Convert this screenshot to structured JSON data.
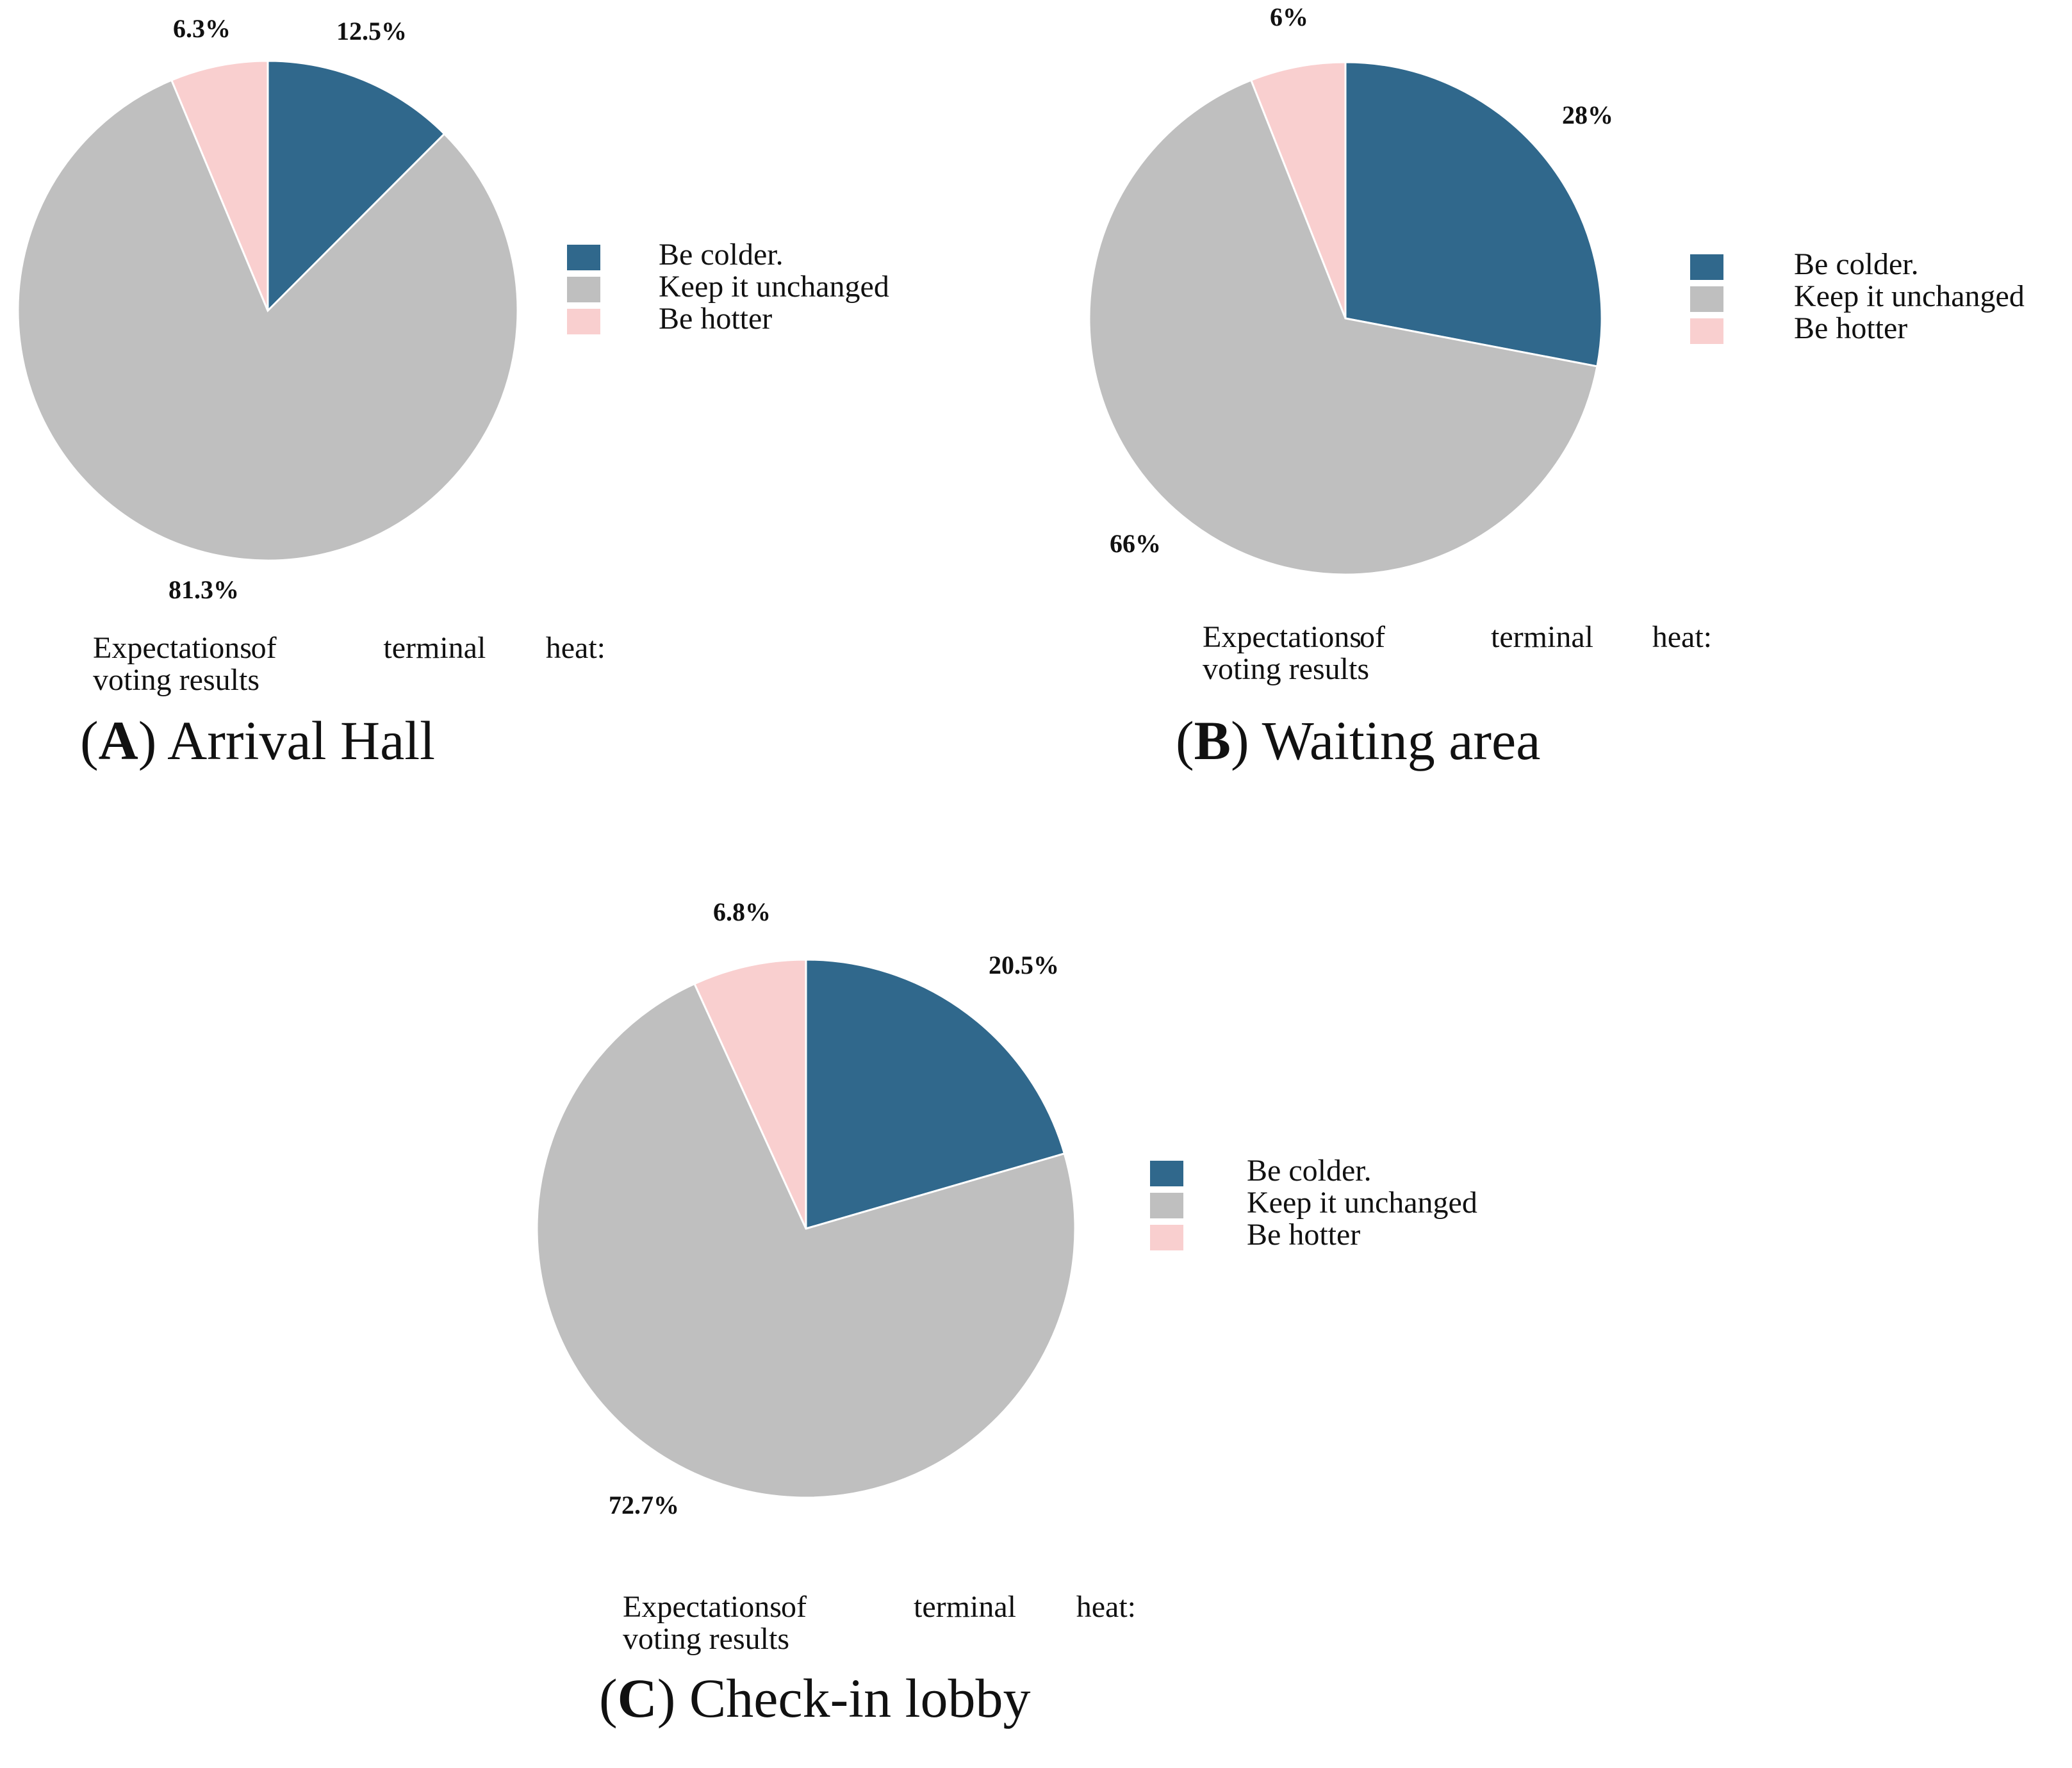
{
  "chart_data": [
    {
      "type": "pie",
      "panel": "A",
      "title": "Arrival Hall",
      "subtitle_words": [
        "Expectations",
        "of",
        "terminal",
        "heat:"
      ],
      "subtitle_line2": "voting results",
      "categories": [
        "Be colder.",
        "Keep it unchanged",
        "Be hotter"
      ],
      "values": [
        12.5,
        81.3,
        6.3
      ],
      "labels": [
        "12.5%",
        "81.3%",
        "6.3%"
      ],
      "colors": [
        "#30688c",
        "#bfbfbf",
        "#f9cfcf"
      ],
      "legend": "right"
    },
    {
      "type": "pie",
      "panel": "B",
      "title": "Waiting area",
      "subtitle_words": [
        "Expectations",
        "of",
        "terminal",
        "heat:"
      ],
      "subtitle_line2": "voting results",
      "categories": [
        "Be colder.",
        "Keep it unchanged",
        "Be hotter"
      ],
      "values": [
        28,
        66,
        6
      ],
      "labels": [
        "28%",
        "66%",
        "6%"
      ],
      "colors": [
        "#30688c",
        "#bfbfbf",
        "#f9cfcf"
      ],
      "legend": "right"
    },
    {
      "type": "pie",
      "panel": "C",
      "title": "Check-in lobby",
      "subtitle_words": [
        "Expectations",
        "of",
        "terminal",
        "heat:"
      ],
      "subtitle_line2": "voting results",
      "categories": [
        "Be colder.",
        "Keep it unchanged",
        "Be hotter"
      ],
      "values": [
        20.5,
        72.7,
        6.8
      ],
      "labels": [
        "20.5%",
        "72.7%",
        "6.8%"
      ],
      "colors": [
        "#30688c",
        "#bfbfbf",
        "#f9cfcf"
      ],
      "legend": "right"
    }
  ]
}
